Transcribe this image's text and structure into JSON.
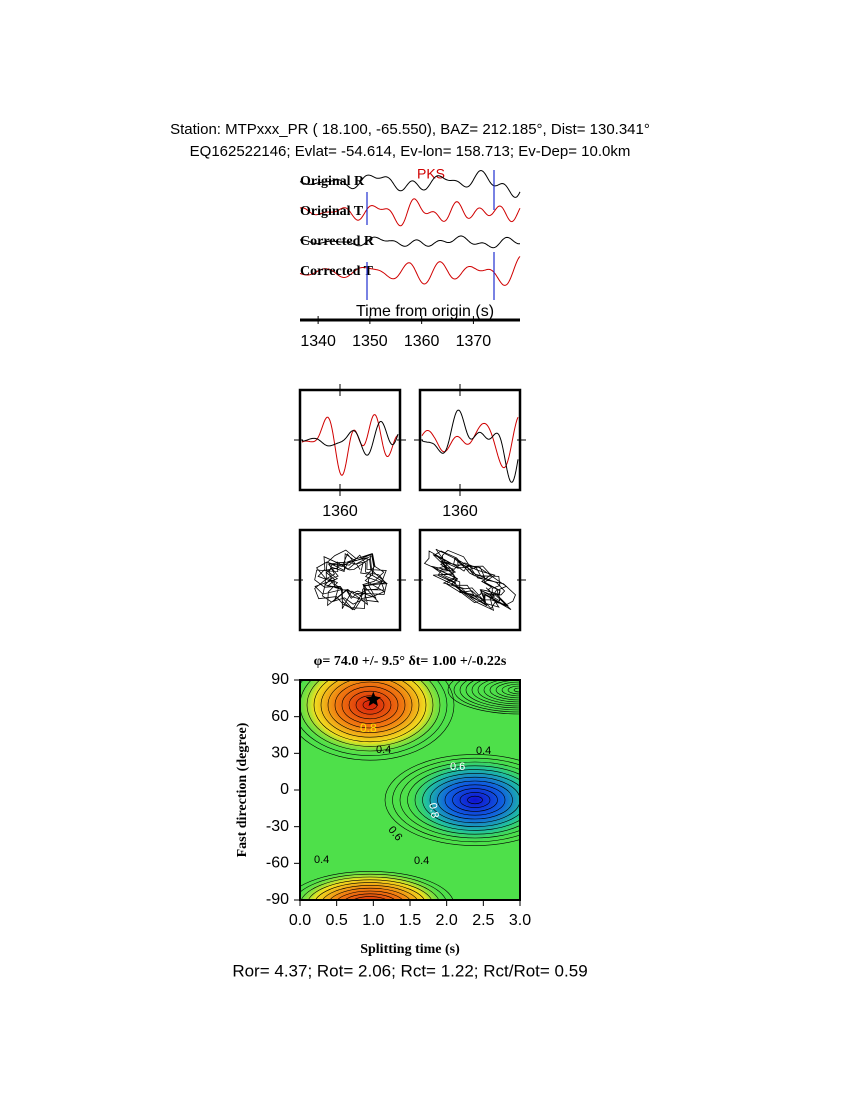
{
  "header": {
    "line1": "Station: MTPxxx_PR (  18.100,  -65.550), BAZ=  212.185°, Dist=  130.341°",
    "line2": "EQ162522146; Evlat= -54.614, Ev-lon= 158.713; Ev-Dep= 10.0km"
  },
  "traces": {
    "labels": [
      "Original R",
      "Original T",
      "Corrected R",
      "Corrected T"
    ],
    "phase": "PKS",
    "xlabel": "Time from origin (s)",
    "xlim": [
      1336.5,
      1379
    ],
    "xticks": [
      1340,
      1350,
      1360,
      1370
    ]
  },
  "windows": [
    {
      "xlim": [
        1352,
        1372
      ],
      "xticks": [
        1360
      ]
    },
    {
      "xlim": [
        1352,
        1372
      ],
      "xticks": [
        1360
      ]
    }
  ],
  "grid_search": {
    "title": "φ= 74.0 +/- 9.5° δt= 1.00 +/-0.22s",
    "xlabel": "Splitting time (s)",
    "ylabel": "Fast direction (degree)",
    "xlim": [
      0,
      3
    ],
    "xticks": [
      {
        "value": 0,
        "label": "0.0"
      },
      {
        "value": 0.5,
        "label": "0.5"
      },
      {
        "value": 1,
        "label": "1.0"
      },
      {
        "value": 1.5,
        "label": "1.5"
      },
      {
        "value": 2,
        "label": "2.0"
      },
      {
        "value": 2.5,
        "label": "2.5"
      },
      {
        "value": 3,
        "label": "3.0"
      }
    ],
    "ylim": [
      -90,
      90
    ],
    "yticks": [
      -90,
      -60,
      -30,
      0,
      30,
      60,
      90
    ],
    "best": {
      "dt": 1.0,
      "phi": 74.0
    },
    "contour_labels": [
      "0.8",
      "0.4",
      "0.4",
      "0.6",
      "0.4",
      "0.4",
      "0.8",
      "0.6"
    ]
  },
  "footer": "Ror= 4.37; Rot= 2.06; Rct= 1.22; Rct/Rot= 0.59"
}
